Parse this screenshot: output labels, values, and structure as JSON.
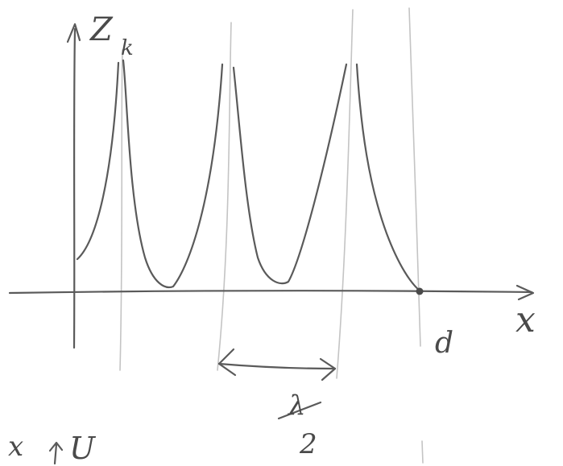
{
  "ink_color": "#5a5a5a",
  "guide_color": "#c4c4c4",
  "labels": {
    "y_axis": "Z",
    "y_axis_sub": "k",
    "x_axis": "x",
    "d_mark": "d",
    "half_lambda_num": "λ",
    "half_lambda_den": "2",
    "bottom_x": "x",
    "bottom_u": "U"
  }
}
